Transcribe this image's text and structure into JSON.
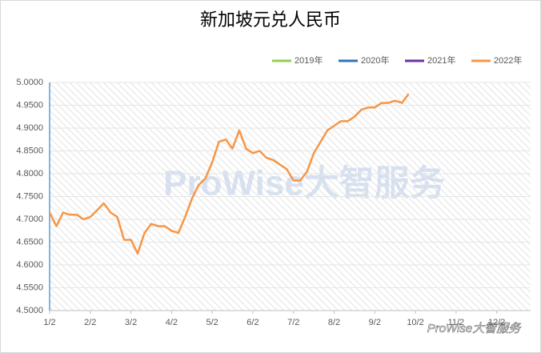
{
  "chart_data": {
    "type": "line",
    "title": "新加坡元兑人民币",
    "watermark": "ProWise大智服务",
    "categories": [
      "1/2",
      null,
      null,
      null,
      null,
      null,
      "2/2",
      null,
      null,
      null,
      null,
      null,
      "3/2",
      null,
      null,
      null,
      null,
      null,
      "4/2",
      null,
      null,
      null,
      null,
      null,
      "5/2",
      null,
      null,
      null,
      null,
      null,
      "6/2",
      null,
      null,
      null,
      null,
      null,
      "7/2",
      null,
      null,
      null,
      null,
      null,
      "8/2",
      null,
      null,
      null,
      null,
      null,
      "9/2",
      null,
      null,
      null,
      null,
      null,
      "10/2",
      null,
      null,
      null,
      null,
      null,
      "11/2",
      null,
      null,
      null,
      null,
      null,
      "12/2",
      null,
      null,
      null,
      null,
      null
    ],
    "series": [
      {
        "name": "2019年",
        "color": "#92d050",
        "values": [
          null,
          null,
          null,
          null,
          null,
          null,
          null,
          null,
          null,
          null,
          null,
          null,
          null,
          null,
          null,
          null,
          null,
          null,
          null,
          null,
          null,
          null,
          null,
          null,
          null,
          null,
          null,
          null,
          null,
          null,
          null,
          null,
          null,
          null,
          null,
          null,
          null,
          null,
          null,
          null,
          null,
          null,
          null,
          null,
          null,
          null,
          null,
          null,
          null,
          null,
          null,
          null,
          null,
          null,
          null,
          null,
          null,
          null,
          null,
          null,
          null,
          null,
          null,
          null,
          null,
          null,
          null,
          null,
          null,
          null,
          null,
          null
        ]
      },
      {
        "name": "2020年",
        "color": "#2e75b6",
        "values": [
          null,
          null,
          null,
          null,
          null,
          null,
          null,
          null,
          null,
          null,
          null,
          null,
          null,
          null,
          null,
          null,
          null,
          null,
          null,
          null,
          null,
          null,
          null,
          null,
          null,
          null,
          null,
          null,
          null,
          null,
          null,
          null,
          null,
          null,
          null,
          null,
          null,
          null,
          null,
          null,
          null,
          null,
          null,
          null,
          null,
          null,
          null,
          null,
          null,
          null,
          null,
          null,
          null,
          null,
          null,
          null,
          null,
          null,
          null,
          null,
          null,
          null,
          null,
          null,
          null,
          null,
          null,
          null,
          null,
          null,
          null,
          null
        ]
      },
      {
        "name": "2021年",
        "color": "#7030a0",
        "values": [
          null,
          null,
          null,
          null,
          null,
          null,
          null,
          null,
          null,
          null,
          null,
          null,
          null,
          null,
          null,
          null,
          null,
          null,
          null,
          null,
          null,
          null,
          null,
          null,
          null,
          null,
          null,
          null,
          null,
          null,
          null,
          null,
          null,
          null,
          null,
          null,
          null,
          null,
          null,
          null,
          null,
          null,
          null,
          null,
          null,
          null,
          null,
          null,
          null,
          null,
          null,
          null,
          null,
          null,
          null,
          null,
          null,
          null,
          null,
          null,
          null,
          null,
          null,
          null,
          null,
          null,
          null,
          null,
          null,
          null,
          null,
          null
        ]
      },
      {
        "name": "2022年",
        "color": "#f79646",
        "values": [
          4.715,
          4.685,
          4.715,
          4.71,
          4.71,
          4.7,
          4.705,
          4.72,
          4.735,
          4.715,
          4.705,
          4.655,
          4.655,
          4.625,
          4.67,
          4.69,
          4.685,
          4.685,
          4.675,
          4.67,
          4.705,
          4.745,
          4.775,
          4.79,
          4.825,
          4.87,
          4.875,
          4.855,
          4.895,
          4.855,
          4.845,
          4.85,
          4.835,
          4.83,
          4.82,
          4.81,
          4.785,
          4.785,
          4.805,
          4.845,
          4.87,
          4.895,
          4.905,
          4.915,
          4.915,
          4.925,
          4.94,
          4.945,
          4.945,
          4.955,
          4.955,
          4.96,
          4.955,
          4.975,
          null,
          null,
          null,
          null,
          null,
          null,
          null,
          null,
          null,
          null,
          null,
          null,
          null,
          null,
          null,
          null,
          null,
          null
        ]
      }
    ],
    "ylim": [
      4.5,
      5.0
    ],
    "yticks": [
      {
        "value": 4.5,
        "label": "4.5000"
      },
      {
        "value": 4.55,
        "label": "4.5500"
      },
      {
        "value": 4.6,
        "label": "4.6000"
      },
      {
        "value": 4.65,
        "label": "4.6500"
      },
      {
        "value": 4.7,
        "label": "4.7000"
      },
      {
        "value": 4.75,
        "label": "4.7500"
      },
      {
        "value": 4.8,
        "label": "4.8000"
      },
      {
        "value": 4.85,
        "label": "4.8500"
      },
      {
        "value": 4.9,
        "label": "4.9000"
      },
      {
        "value": 4.95,
        "label": "4.9500"
      },
      {
        "value": 5.0,
        "label": "5.0000"
      }
    ],
    "grid": true,
    "legend": "top-right"
  }
}
